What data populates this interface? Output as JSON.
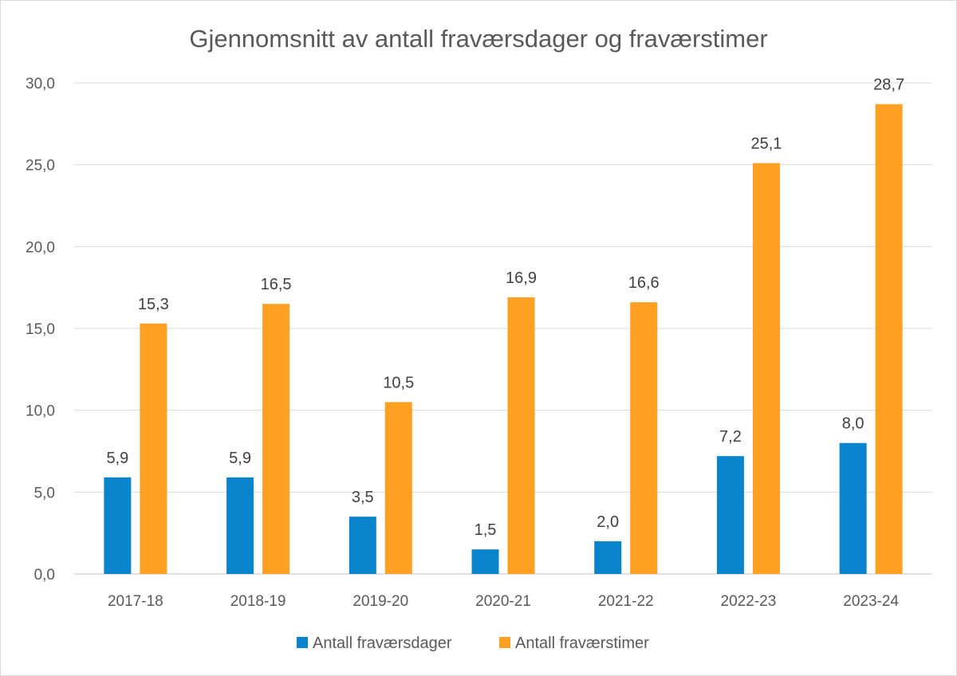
{
  "chart_data": {
    "type": "bar",
    "title": "Gjennomsnitt av antall fraværsdager og fraværstimer",
    "categories": [
      "2017-18",
      "2018-19",
      "2019-20",
      "2020-21",
      "2021-22",
      "2022-23",
      "2023-24"
    ],
    "series": [
      {
        "name": "Antall fraværsdager",
        "color": "#0a84cc",
        "values": [
          5.9,
          5.9,
          3.5,
          1.5,
          2.0,
          7.2,
          8.0
        ],
        "labels": [
          "5,9",
          "5,9",
          "3,5",
          "1,5",
          "2,0",
          "7,2",
          "8,0"
        ]
      },
      {
        "name": "Antall fraværstimer",
        "color": "#ffa022",
        "values": [
          15.3,
          16.5,
          10.5,
          16.9,
          16.6,
          25.1,
          28.7
        ],
        "labels": [
          "15,3",
          "16,5",
          "10,5",
          "16,9",
          "16,6",
          "25,1",
          "28,7"
        ]
      }
    ],
    "ylim": [
      0,
      30
    ],
    "yticks": [
      0,
      5,
      10,
      15,
      20,
      25,
      30
    ],
    "ytick_labels": [
      "0,0",
      "5,0",
      "10,0",
      "15,0",
      "20,0",
      "25,0",
      "30,0"
    ],
    "grid": true,
    "legend": "bottom"
  }
}
